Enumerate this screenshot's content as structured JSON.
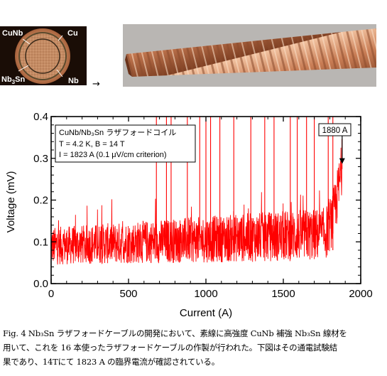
{
  "figure": {
    "cross_section_labels": {
      "cunb": "CuNb",
      "cu": "Cu",
      "nb3sn_main": "Nb",
      "nb3sn_sub": "3",
      "nb3sn_tail": "Sn",
      "nb": "Nb"
    },
    "arrow_glyph": "→",
    "colors": {
      "signal": "#ff0000",
      "copper": "#c47a55",
      "cable_bg": "#1a0d06"
    }
  },
  "chart_data": {
    "type": "line",
    "xlabel": "Current (A)",
    "ylabel": "Voltage (mV)",
    "xlim": [
      0,
      2000
    ],
    "ylim": [
      0,
      0.4
    ],
    "xticks": [
      "0",
      "500",
      "1000",
      "1500",
      "2000"
    ],
    "yticks": [
      "0.0",
      "0.1",
      "0.2",
      "0.3",
      "0.4"
    ],
    "series_color": "#ff0000",
    "noise_band": {
      "x_start": 0,
      "x_end": 1880,
      "baseline_start": 0.09,
      "baseline_end": 0.12,
      "rise_start": 1750,
      "end_value": 0.285
    },
    "spike_currents": [
      680,
      745,
      775,
      880,
      960,
      1000,
      1030,
      1090,
      1180,
      1290,
      1380,
      1440,
      1545,
      1590,
      1650,
      1700,
      1790,
      1820
    ],
    "legend": {
      "title": "CuNb/Nb₃Sn ラザフォードコイル",
      "line2": "T = 4.2 K, B = 14 T",
      "line3": "I = 1823 A (0.1 μV/cm criterion)"
    },
    "annotation": {
      "label": "1880 A",
      "x": 1880,
      "y": 0.285
    }
  },
  "caption": {
    "line1": "Fig. 4 Nb₃Sn ラザフォードケーブルの開発において、素線に高強度 CuNb 補強 Nb₃Sn 線材を",
    "line2": "用いて、これを 16 本使ったラザフォードケーブルの作製が行われた。下図はその通電試験結",
    "line3": "果であり、14Tにて 1823 A の臨界電流が確認されている。"
  }
}
